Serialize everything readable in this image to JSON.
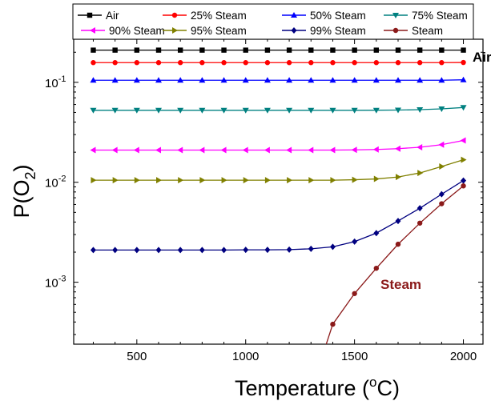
{
  "chart_data": {
    "type": "line",
    "xlabel": "Temperature (",
    "xlabel_sup": "o",
    "xlabel_unit": "C)",
    "ylabel": "P(O",
    "ylabel_sub": "2",
    "ylabel_end": ")",
    "yscale": "log",
    "xlim": [
      210,
      2090
    ],
    "ylim": [
      0.00024,
      0.27
    ],
    "xticks": [
      500,
      1000,
      1500,
      2000
    ],
    "yticks": [
      {
        "value": 0.1,
        "base": "10",
        "exp": "-1"
      },
      {
        "value": 0.01,
        "base": "10",
        "exp": "-2"
      },
      {
        "value": 0.001,
        "base": "10",
        "exp": "-3"
      }
    ],
    "legend_position": "top",
    "annotations": [
      {
        "text": "Air",
        "color": "#000000"
      },
      {
        "text": "Steam",
        "color": "#8b1a1a"
      }
    ],
    "x": [
      300,
      400,
      500,
      600,
      700,
      800,
      900,
      1000,
      1100,
      1200,
      1300,
      1400,
      1500,
      1600,
      1700,
      1800,
      1900,
      2000
    ],
    "series": [
      {
        "name": "Air",
        "color": "#000000",
        "marker": "square",
        "values": [
          0.21,
          0.21,
          0.21,
          0.21,
          0.21,
          0.21,
          0.21,
          0.21,
          0.21,
          0.21,
          0.21,
          0.21,
          0.21,
          0.21,
          0.21,
          0.21,
          0.21,
          0.21
        ]
      },
      {
        "name": "25% Steam",
        "color": "#ff0000",
        "marker": "circle",
        "values": [
          0.1575,
          0.1575,
          0.1575,
          0.1575,
          0.1575,
          0.1575,
          0.1575,
          0.1575,
          0.1575,
          0.1575,
          0.1575,
          0.1575,
          0.1575,
          0.1575,
          0.1575,
          0.1575,
          0.1575,
          0.158
        ]
      },
      {
        "name": "50% Steam",
        "color": "#0000ff",
        "marker": "triangle-up",
        "values": [
          0.105,
          0.105,
          0.105,
          0.105,
          0.105,
          0.105,
          0.105,
          0.105,
          0.105,
          0.105,
          0.105,
          0.105,
          0.105,
          0.105,
          0.105,
          0.105,
          0.105,
          0.106
        ]
      },
      {
        "name": "75% Steam",
        "color": "#008080",
        "marker": "triangle-down",
        "values": [
          0.0525,
          0.0525,
          0.0525,
          0.0525,
          0.0525,
          0.0525,
          0.0525,
          0.0525,
          0.0525,
          0.0525,
          0.0525,
          0.0525,
          0.0525,
          0.0526,
          0.0528,
          0.0533,
          0.0543,
          0.056
        ]
      },
      {
        "name": "90% Steam",
        "color": "#ff00ff",
        "marker": "triangle-left",
        "values": [
          0.021,
          0.021,
          0.021,
          0.021,
          0.021,
          0.021,
          0.021,
          0.021,
          0.021,
          0.021,
          0.021,
          0.021,
          0.0211,
          0.0213,
          0.0217,
          0.0224,
          0.0238,
          0.0262
        ]
      },
      {
        "name": "95% Steam",
        "color": "#808000",
        "marker": "triangle-right",
        "values": [
          0.0105,
          0.0105,
          0.0105,
          0.0105,
          0.0105,
          0.0105,
          0.0105,
          0.0105,
          0.0105,
          0.0105,
          0.0105,
          0.0105,
          0.0106,
          0.0108,
          0.0113,
          0.0124,
          0.0144,
          0.0168
        ]
      },
      {
        "name": "99% Steam",
        "color": "#000080",
        "marker": "diamond",
        "values": [
          0.0021,
          0.0021,
          0.0021,
          0.0021,
          0.0021,
          0.0021,
          0.0021,
          0.00211,
          0.00211,
          0.00212,
          0.00216,
          0.00226,
          0.00255,
          0.0031,
          0.0041,
          0.0055,
          0.0076,
          0.0104
        ]
      },
      {
        "name": "Steam",
        "color": "#8b1a1a",
        "marker": "circle",
        "values": [
          null,
          null,
          null,
          null,
          null,
          null,
          null,
          null,
          null,
          null,
          8.2e-05,
          0.00038,
          0.00077,
          0.00138,
          0.0024,
          0.0039,
          0.0061,
          0.0092
        ]
      }
    ]
  }
}
